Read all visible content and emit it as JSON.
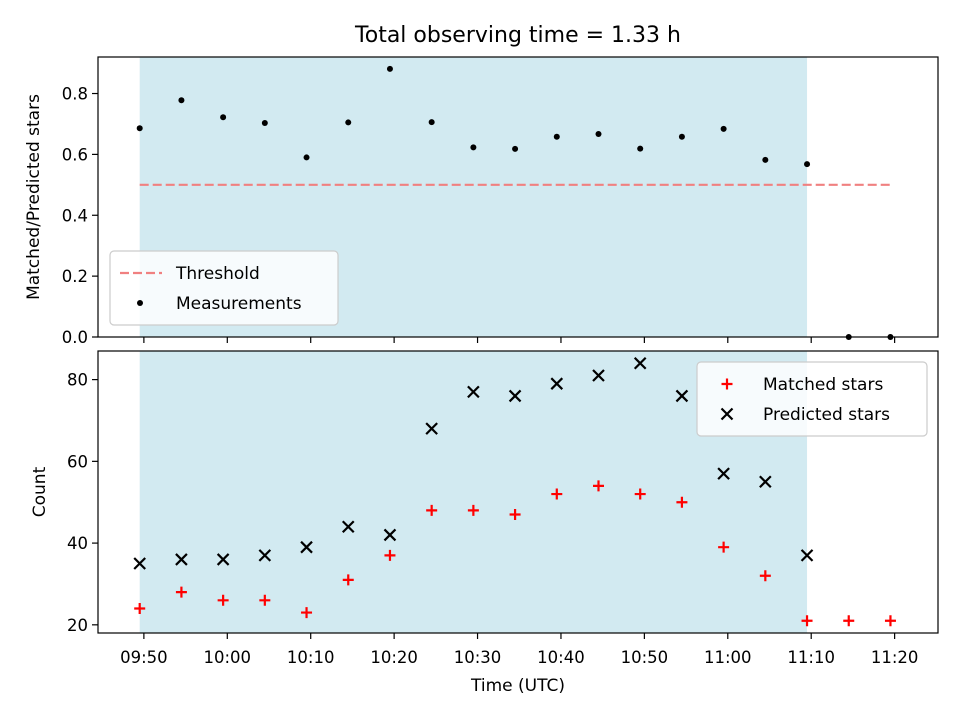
{
  "chart_data": {
    "title": "Total observing time = 1.33 h",
    "xlabel": "Time (UTC)",
    "x_tick_labels": [
      "09:50",
      "10:00",
      "10:10",
      "10:20",
      "10:30",
      "10:40",
      "10:50",
      "11:00",
      "11:10",
      "11:20"
    ],
    "x_tick_minutes": [
      590,
      600,
      610,
      620,
      630,
      640,
      650,
      660,
      670,
      680
    ],
    "xlim_minutes": [
      584.5,
      685.2
    ],
    "shaded_span_minutes": [
      589.5,
      669.5
    ],
    "shaded_color": "#add8e6",
    "x_minutes": [
      589.5,
      594.5,
      599.5,
      604.5,
      609.5,
      614.5,
      619.5,
      624.5,
      629.5,
      634.5,
      639.5,
      644.5,
      649.5,
      654.5,
      659.5,
      664.5,
      669.5,
      674.5,
      679.5
    ],
    "panels": [
      {
        "type": "scatter",
        "ylabel": "Matched/Predicted stars",
        "ylim": [
          0,
          0.92
        ],
        "yticks": [
          0.0,
          0.2,
          0.4,
          0.6,
          0.8
        ],
        "ytick_labels": [
          "0.0",
          "0.2",
          "0.4",
          "0.6",
          "0.8"
        ],
        "legend_position": "lower-left",
        "threshold": {
          "name": "Threshold",
          "value": 0.5,
          "x_range_minutes": [
            589.5,
            679.5
          ],
          "color": "#f08080"
        },
        "series": [
          {
            "name": "Measurements",
            "color": "#000000",
            "marker": "dot",
            "values": [
              0.686,
              0.778,
              0.722,
              0.703,
              0.59,
              0.705,
              0.881,
              0.706,
              0.623,
              0.618,
              0.658,
              0.667,
              0.619,
              0.658,
              0.684,
              0.582,
              0.568,
              0.0,
              0.0
            ]
          }
        ]
      },
      {
        "type": "scatter",
        "ylabel": "Count",
        "ylim": [
          18,
          87
        ],
        "yticks": [
          20,
          40,
          60,
          80
        ],
        "ytick_labels": [
          "20",
          "40",
          "60",
          "80"
        ],
        "legend_position": "upper-right",
        "series": [
          {
            "name": "Matched stars",
            "color": "#ff0000",
            "marker": "plus",
            "values": [
              24,
              28,
              26,
              26,
              23,
              31,
              37,
              48,
              48,
              47,
              52,
              54,
              52,
              50,
              39,
              32,
              21,
              21,
              21
            ]
          },
          {
            "name": "Predicted stars",
            "color": "#000000",
            "marker": "x",
            "values": [
              35,
              36,
              36,
              37,
              39,
              44,
              42,
              68,
              77,
              76,
              79,
              81,
              84,
              76,
              57,
              55,
              37,
              null,
              null
            ]
          }
        ]
      }
    ]
  }
}
